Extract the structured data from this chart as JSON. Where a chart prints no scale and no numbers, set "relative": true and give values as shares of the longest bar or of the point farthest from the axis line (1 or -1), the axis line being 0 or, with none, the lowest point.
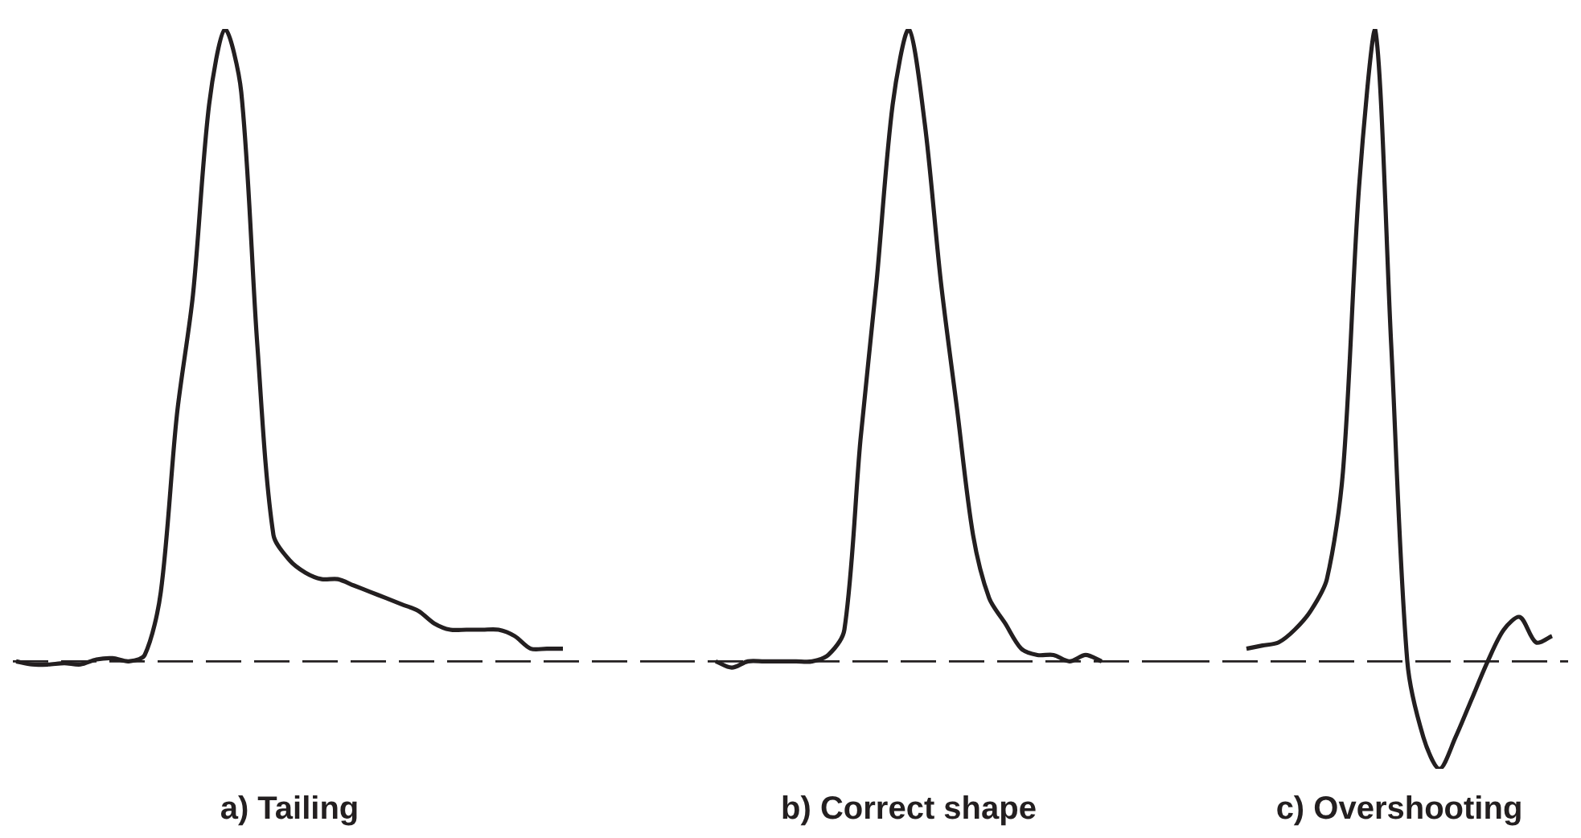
{
  "chart_data": [
    {
      "type": "line",
      "relative": true,
      "xlabel": "a) Tailing",
      "color": "#231f20",
      "categories": [
        null,
        null,
        null,
        null,
        null,
        null,
        null,
        null,
        null,
        null,
        null,
        null,
        null,
        null,
        null,
        null,
        null,
        null,
        null,
        null,
        null,
        null,
        null,
        null,
        null,
        null,
        null,
        null,
        null,
        null,
        null,
        null,
        null,
        null,
        null
      ],
      "values": [
        0,
        -0.005,
        -0.005,
        -0.003,
        -0.005,
        0.003,
        0.005,
        0,
        0.01,
        0.11,
        0.39,
        0.58,
        0.88,
        1,
        0.9,
        0.5,
        0.2,
        0.16,
        0.14,
        0.13,
        0.13,
        0.12,
        0.11,
        0.1,
        0.09,
        0.08,
        0.06,
        0.05,
        0.05,
        0.05,
        0.05,
        0.04,
        0.02,
        0.02,
        0.02
      ],
      "ref_lines": [
        {
          "axis": "y",
          "value": 0,
          "line_style": "dashed"
        }
      ]
    },
    {
      "type": "line",
      "relative": true,
      "xlabel": "b) Correct shape",
      "color": "#231f20",
      "categories": [
        null,
        null,
        null,
        null,
        null,
        null,
        null,
        null,
        null,
        null,
        null,
        null,
        null,
        null,
        null,
        null,
        null,
        null,
        null,
        null,
        null,
        null,
        null,
        null,
        null
      ],
      "values": [
        0,
        -0.01,
        0,
        0,
        0,
        0,
        0,
        0.01,
        0.05,
        0.35,
        0.6,
        0.88,
        1,
        0.85,
        0.6,
        0.4,
        0.2,
        0.1,
        0.06,
        0.02,
        0.01,
        0.01,
        0,
        0.01,
        0
      ],
      "ref_lines": [
        {
          "axis": "y",
          "value": 0,
          "line_style": "dashed"
        }
      ]
    },
    {
      "type": "line",
      "relative": true,
      "xlabel": "c) Overshooting",
      "color": "#231f20",
      "categories": [
        null,
        null,
        null,
        null,
        null,
        null,
        null,
        null,
        null,
        null,
        null,
        null,
        null,
        null,
        null,
        null,
        null,
        null,
        null,
        null
      ],
      "values": [
        0.02,
        0.025,
        0.03,
        0.05,
        0.08,
        0.13,
        0.3,
        0.75,
        1,
        0.5,
        0,
        -0.12,
        -0.17,
        -0.12,
        -0.06,
        0,
        0.05,
        0.07,
        0.03,
        0.04
      ],
      "ref_lines": [
        {
          "axis": "y",
          "value": 0,
          "line_style": "dashed"
        }
      ]
    }
  ]
}
